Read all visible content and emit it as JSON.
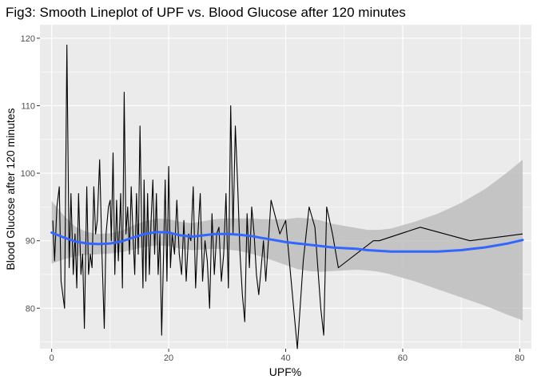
{
  "chart_data": {
    "type": "line",
    "title": "Fig3: Smooth Lineplot of UPF vs. Blood Glucose after 120 minutes",
    "xlabel": "UPF%",
    "ylabel": "Blood Glucose after 120 minutes",
    "xlim": [
      -2,
      82
    ],
    "ylim": [
      74,
      122
    ],
    "xticks": [
      0,
      20,
      40,
      60,
      80
    ],
    "yticks": [
      80,
      90,
      100,
      110,
      120
    ],
    "grid": true,
    "legend": "none",
    "colors": {
      "panel": "#ebebeb",
      "grid_major": "#ffffff",
      "raw_line": "#000000",
      "smooth_line": "#3366ff",
      "ribbon": "#bdbdbd"
    },
    "series": [
      {
        "role": "raw",
        "x": [
          0.2,
          0.5,
          0.9,
          1.3,
          1.6,
          2.2,
          2.6,
          3.0,
          3.3,
          3.7,
          4.0,
          4.3,
          4.6,
          5.0,
          5.3,
          5.6,
          6.0,
          6.3,
          6.6,
          6.9,
          7.2,
          7.5,
          7.8,
          8.2,
          8.6,
          9.0,
          9.3,
          9.7,
          10.0,
          10.2,
          10.5,
          10.8,
          11.1,
          11.4,
          11.8,
          12.1,
          12.4,
          12.7,
          13.0,
          13.3,
          13.6,
          13.9,
          14.2,
          14.5,
          14.8,
          15.1,
          15.4,
          15.6,
          15.8,
          16.1,
          16.4,
          16.7,
          17.0,
          17.3,
          17.6,
          17.9,
          18.2,
          18.5,
          18.8,
          19.1,
          19.4,
          19.7,
          20.0,
          20.3,
          20.6,
          21.0,
          21.4,
          21.8,
          22.2,
          22.6,
          23.0,
          23.4,
          23.8,
          24.2,
          24.6,
          25.0,
          25.4,
          25.8,
          26.2,
          26.6,
          27.0,
          27.4,
          27.8,
          28.2,
          28.6,
          29.0,
          29.4,
          29.8,
          30.2,
          30.6,
          31.0,
          31.4,
          31.8,
          32.2,
          32.6,
          33.0,
          33.4,
          33.8,
          34.2,
          34.6,
          35.0,
          35.4,
          35.8,
          36.2,
          36.6,
          37.5,
          39.0,
          40.0,
          42.0,
          43.0,
          44.0,
          45.0,
          46.0,
          46.5,
          47.0,
          48.0,
          49.0,
          55.0,
          56.0,
          63.0,
          71.5,
          80.5
        ],
        "y": [
          93,
          87,
          95,
          98,
          84,
          80,
          119,
          86,
          97,
          85,
          91,
          83,
          97,
          85,
          88,
          77,
          98,
          85,
          88,
          86,
          98,
          91,
          93,
          102,
          88,
          77,
          91,
          95,
          96,
          90,
          103,
          85,
          96,
          87,
          97,
          83,
          112,
          91,
          95,
          88,
          98,
          91,
          85,
          97,
          88,
          107,
          91,
          83,
          99,
          84,
          97,
          85,
          93,
          99,
          88,
          97,
          85,
          91,
          76,
          87,
          99,
          84,
          101,
          86,
          91,
          88,
          96,
          88,
          85,
          93,
          84,
          91,
          90,
          98,
          83,
          91,
          97,
          84,
          90,
          87,
          80,
          94,
          85,
          91,
          92,
          84,
          88,
          97,
          83,
          110,
          91,
          107,
          98,
          88,
          82,
          78,
          94,
          86,
          95,
          91,
          85,
          82,
          86,
          90,
          84,
          96,
          91,
          93,
          74,
          87,
          95,
          92,
          80,
          76,
          95,
          91,
          86,
          90,
          90,
          92,
          90,
          91
        ]
      },
      {
        "role": "smooth",
        "x": [
          0,
          2,
          4,
          6,
          8,
          10,
          12,
          14,
          16,
          18,
          20,
          22,
          24,
          26,
          28,
          30,
          32,
          34,
          36,
          38,
          40,
          42,
          44,
          46,
          48,
          50,
          52,
          54,
          56,
          58,
          60,
          62,
          64,
          66,
          68,
          70,
          72,
          74,
          76,
          78,
          80.5
        ],
        "y": [
          91.2,
          90.5,
          89.9,
          89.6,
          89.5,
          89.6,
          89.9,
          90.5,
          91.0,
          91.3,
          91.2,
          90.8,
          90.6,
          90.8,
          91.0,
          91.0,
          90.9,
          90.7,
          90.4,
          90.1,
          89.8,
          89.6,
          89.4,
          89.2,
          89.0,
          88.9,
          88.8,
          88.6,
          88.5,
          88.4,
          88.4,
          88.4,
          88.4,
          88.4,
          88.5,
          88.6,
          88.8,
          89.0,
          89.3,
          89.6,
          90.1
        ],
        "ymin": [
          86.6,
          87.2,
          87.7,
          87.9,
          88.0,
          88.1,
          88.3,
          88.7,
          89.1,
          89.3,
          89.2,
          88.8,
          88.6,
          88.7,
          88.8,
          88.7,
          88.5,
          88.1,
          87.6,
          87.0,
          86.4,
          85.8,
          85.5,
          85.4,
          85.5,
          85.6,
          85.7,
          85.6,
          85.4,
          85.0,
          84.5,
          84.0,
          83.4,
          82.8,
          82.2,
          81.6,
          81.0,
          80.4,
          79.7,
          79.0,
          78.2
        ],
        "ymax": [
          95.9,
          93.8,
          92.1,
          91.3,
          91.0,
          91.1,
          91.5,
          92.3,
          92.9,
          93.3,
          93.2,
          92.8,
          92.6,
          92.9,
          93.2,
          93.3,
          93.3,
          93.3,
          93.2,
          93.2,
          93.2,
          93.4,
          93.3,
          93.0,
          92.5,
          92.2,
          91.9,
          91.6,
          91.6,
          91.8,
          92.3,
          92.8,
          93.4,
          94.0,
          94.8,
          95.6,
          96.6,
          97.6,
          98.9,
          100.2,
          102.0
        ]
      }
    ]
  }
}
